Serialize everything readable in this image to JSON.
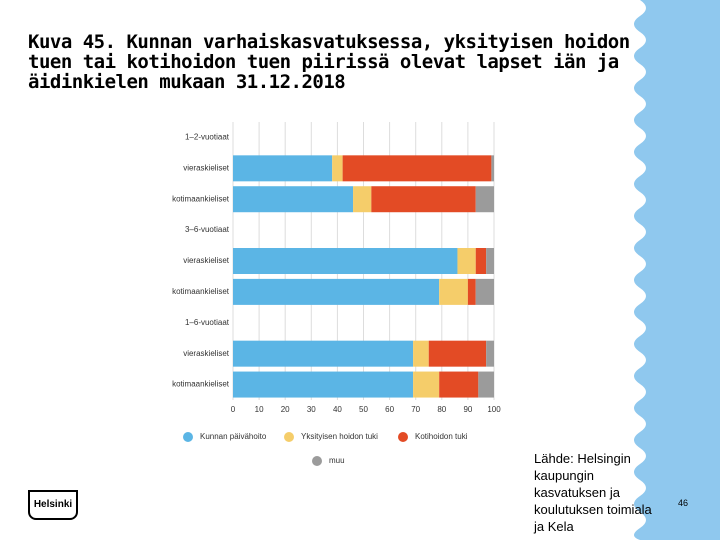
{
  "chart_data": {
    "type": "stacked-bar-horizontal",
    "title": "Kuva 45. Kunnan varhaiskasvatuksessa, yksityisen hoidon tuen tai kotihoidon tuen piirissä olevat lapset iän ja äidinkielen mukaan 31.12.2018",
    "categories": [
      "1–2-vuotiaat",
      "vieraskieliset",
      "kotimaankieliset",
      "3–6-vuotiaat",
      "vieraskieliset",
      "kotimaankieliset",
      "1–6-vuotiaat",
      "vieraskieliset",
      "kotimaankieliset"
    ],
    "series": [
      {
        "name": "Kunnan päivähoito",
        "color": "#5bb5e5",
        "values": [
          null,
          38,
          46,
          null,
          86,
          79,
          null,
          69,
          69
        ]
      },
      {
        "name": "Yksityisen hoidon tuki",
        "color": "#f5cd6a",
        "values": [
          null,
          4,
          7,
          null,
          7,
          11,
          null,
          6,
          10
        ]
      },
      {
        "name": "Kotihoidon tuki",
        "color": "#e34b25",
        "values": [
          null,
          57,
          40,
          null,
          4,
          3,
          null,
          22,
          15
        ]
      },
      {
        "name": "muu",
        "color": "#9b9b9b",
        "values": [
          null,
          1,
          7,
          null,
          3,
          7,
          null,
          3,
          6
        ]
      }
    ],
    "xlim": [
      0,
      100
    ],
    "xticks": [
      0,
      10,
      20,
      30,
      40,
      50,
      60,
      70,
      80,
      90,
      100
    ],
    "grid": true
  },
  "source": "Lähde: Helsingin kaupungin kasvatuksen ja koulutuksen toimiala ja Kela",
  "page_number": "46",
  "logo": "Helsinki"
}
